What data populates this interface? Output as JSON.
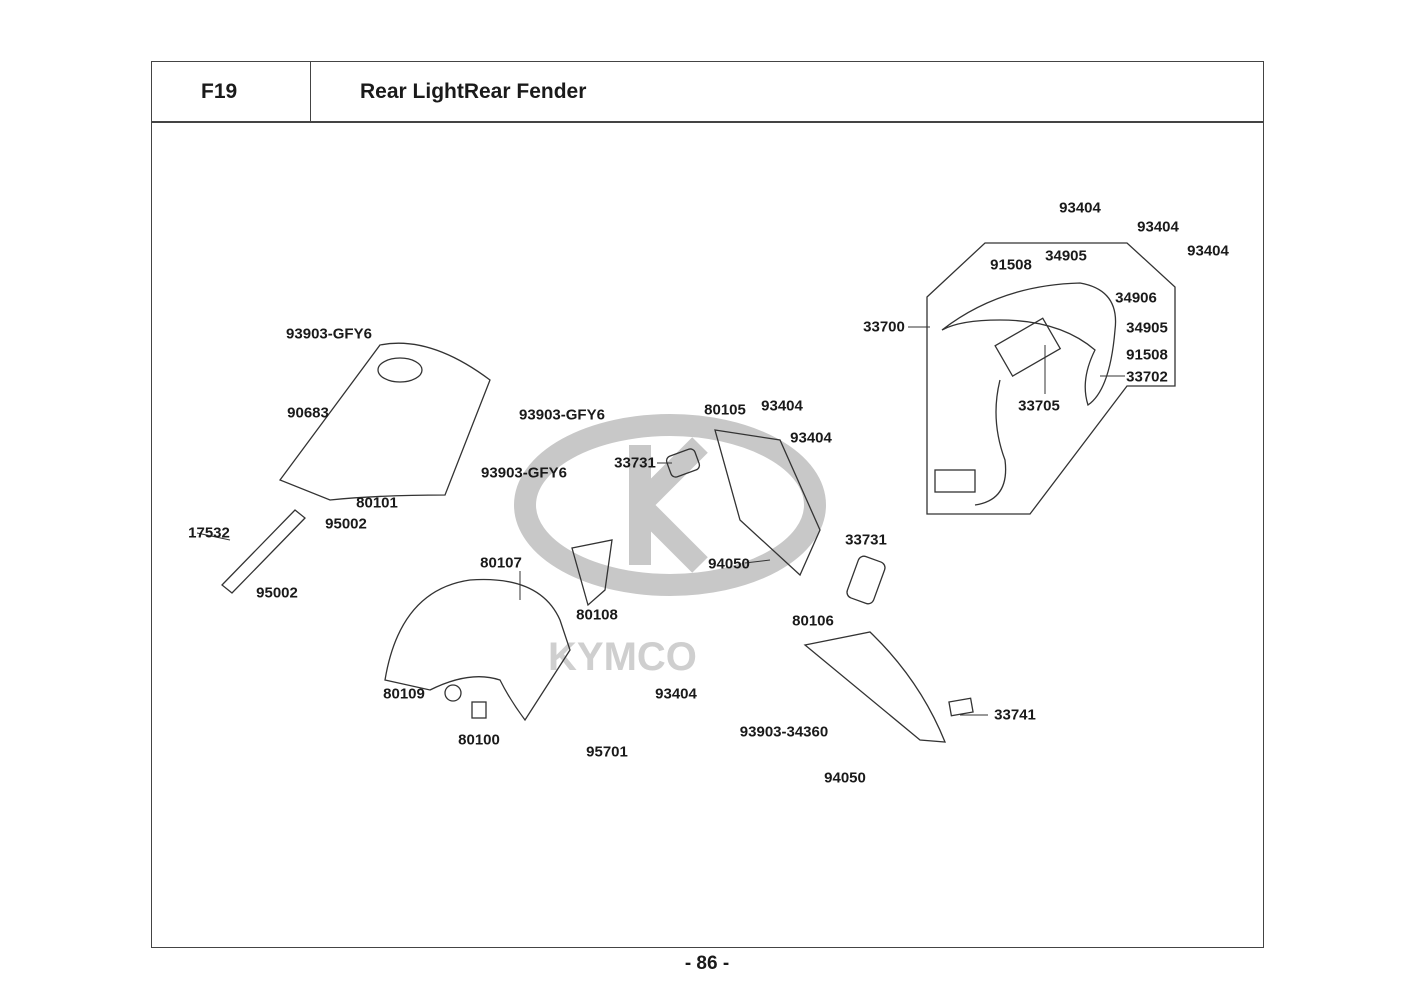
{
  "header": {
    "code": "F19",
    "title": "Rear LightRear Fender"
  },
  "watermark": "KYMCO",
  "parts": [
    "93404",
    "93404",
    "93404",
    "91508",
    "34905",
    "34906",
    "33700",
    "34905",
    "91508",
    "33702",
    "33705",
    "93903-GFY6",
    "90683",
    "93903-GFY6",
    "93903-GFY6",
    "80101",
    "95002",
    "17532",
    "95002",
    "80105",
    "93404",
    "93404",
    "33731",
    "94050",
    "33731",
    "80107",
    "80108",
    "80106",
    "80109",
    "93404",
    "80100",
    "95701",
    "33741",
    "93903-34360",
    "94050"
  ],
  "page_number": "- 86 -"
}
